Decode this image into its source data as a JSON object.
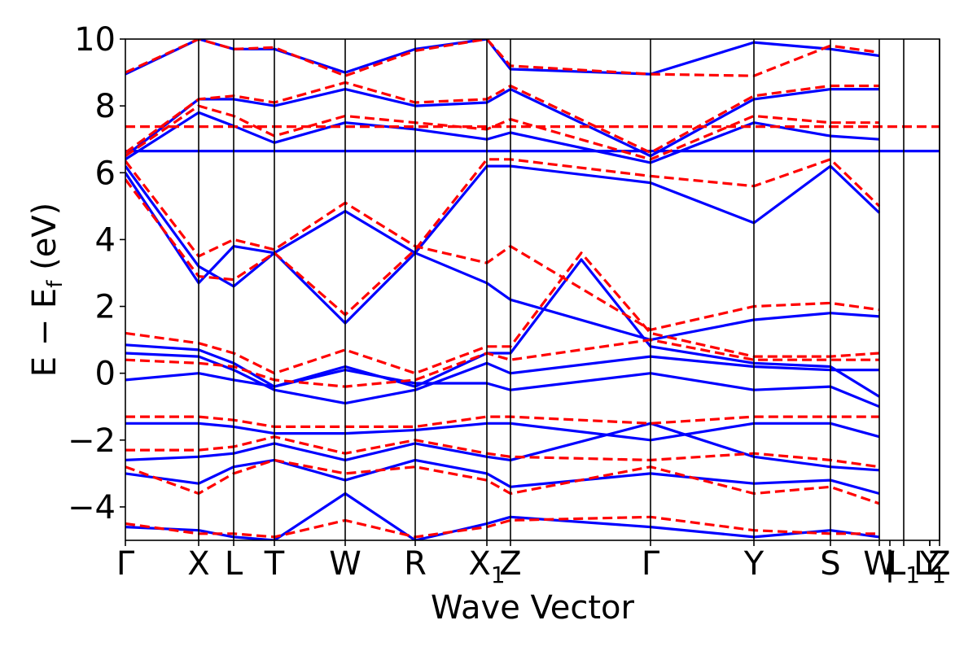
{
  "chart_data": {
    "type": "line",
    "title": "",
    "xlabel": "Wave Vector",
    "ylabel": "E − E",
    "ylabel_subscript": "f",
    "ylabel_unit": " (eV)",
    "ylim": [
      -5,
      10
    ],
    "yticks": [
      {
        "value": 10,
        "label": "10"
      },
      {
        "value": 8,
        "label": "8"
      },
      {
        "value": 6,
        "label": "6"
      },
      {
        "value": 4,
        "label": "4"
      },
      {
        "value": 2,
        "label": "2"
      },
      {
        "value": 0,
        "label": "0"
      },
      {
        "value": -2,
        "label": "−2"
      },
      {
        "value": -4,
        "label": "−4"
      }
    ],
    "kpath": [
      {
        "label": "Γ",
        "sub": "",
        "x": 0.0
      },
      {
        "label": "X",
        "sub": "",
        "x": 0.9
      },
      {
        "label": "L",
        "sub": "",
        "x": 1.33
      },
      {
        "label": "T",
        "sub": "",
        "x": 1.83
      },
      {
        "label": "W",
        "sub": "",
        "x": 2.7
      },
      {
        "label": "R",
        "sub": "",
        "x": 3.56
      },
      {
        "label": "X",
        "sub": "1",
        "x": 4.44
      },
      {
        "label": "Z",
        "sub": "",
        "x": 4.73
      },
      {
        "label": "Γ",
        "sub": "",
        "x": 6.45
      },
      {
        "label": "Y",
        "sub": "",
        "x": 7.72
      },
      {
        "label": "S",
        "sub": "",
        "x": 8.66
      },
      {
        "label": "W",
        "sub": "",
        "x": 9.26
      },
      {
        "label": "|",
        "sub": "",
        "x": 9.39
      },
      {
        "label": "L",
        "sub": "1",
        "x": 9.56
      },
      {
        "label": "Y",
        "sub": "",
        "x": 9.88
      },
      {
        "label": "L",
        "sub": "1",
        "x": 9.88
      },
      {
        "label": "Z",
        "sub": "",
        "x": 10.0
      }
    ],
    "segment_lines": [
      0.9,
      1.33,
      1.83,
      2.7,
      3.56,
      4.44,
      4.73,
      6.45,
      7.72,
      8.66,
      9.26,
      9.56,
      10.0
    ],
    "xlim": [
      0,
      10
    ],
    "series": [
      {
        "color": "#0000ff",
        "style": "solid",
        "bands": [
          {
            "x": [
              0,
              10
            ],
            "y": [
              6.65,
              6.65
            ]
          },
          {
            "x": [
              0,
              0.9,
              1.33,
              1.83,
              2.7,
              3.56,
              4.44,
              4.73,
              6.45,
              7.72,
              8.66,
              9.26
            ],
            "y": [
              6.2,
              3.2,
              2.6,
              3.6,
              4.85,
              3.6,
              2.7,
              2.2,
              1.0,
              1.6,
              1.8,
              1.7
            ]
          },
          {
            "x": [
              0,
              0.9,
              1.33,
              1.83,
              2.7,
              3.56,
              4.44,
              4.73,
              6.45,
              7.72,
              8.66,
              9.26
            ],
            "y": [
              6.0,
              2.7,
              3.8,
              3.6,
              1.5,
              3.6,
              6.2,
              6.2,
              5.7,
              4.5,
              6.2,
              4.8
            ]
          },
          {
            "x": [
              0,
              0.9,
              1.33,
              1.83,
              2.7,
              3.56,
              4.44,
              4.73,
              5.6,
              6.45,
              7.72,
              8.66,
              9.26
            ],
            "y": [
              0.85,
              0.7,
              0.3,
              -0.4,
              0.2,
              -0.4,
              0.6,
              0.6,
              3.4,
              0.8,
              0.3,
              0.2,
              -0.7
            ]
          },
          {
            "x": [
              0,
              0.9,
              1.33,
              1.83,
              2.7,
              3.56,
              4.44,
              4.73,
              6.45,
              7.72,
              8.66,
              9.26
            ],
            "y": [
              0.6,
              0.5,
              0.1,
              -0.5,
              -0.9,
              -0.5,
              0.3,
              0.0,
              0.5,
              0.2,
              0.1,
              0.1
            ]
          },
          {
            "x": [
              0,
              0.9,
              1.33,
              1.83,
              2.7,
              3.56,
              4.44,
              4.73,
              6.45,
              7.72,
              8.66,
              9.26
            ],
            "y": [
              -0.2,
              0.0,
              -0.2,
              -0.4,
              0.1,
              -0.3,
              -0.3,
              -0.5,
              0.0,
              -0.5,
              -0.4,
              -1.0
            ]
          },
          {
            "x": [
              0,
              0.9,
              1.33,
              1.83,
              2.7,
              3.56,
              4.44,
              4.73,
              6.45,
              7.72,
              8.66,
              9.26
            ],
            "y": [
              -1.5,
              -1.5,
              -1.6,
              -1.8,
              -1.8,
              -1.7,
              -1.5,
              -1.5,
              -2.0,
              -1.5,
              -1.5,
              -1.9
            ]
          },
          {
            "x": [
              0,
              0.9,
              1.33,
              1.83,
              2.7,
              3.56,
              4.44,
              4.73,
              6.45,
              7.72,
              8.66,
              9.26
            ],
            "y": [
              -2.6,
              -2.5,
              -2.4,
              -2.1,
              -2.6,
              -2.1,
              -2.5,
              -2.6,
              -1.5,
              -2.5,
              -2.8,
              -2.9
            ]
          },
          {
            "x": [
              0,
              0.9,
              1.33,
              1.83,
              2.7,
              3.56,
              4.44,
              4.73,
              6.45,
              7.72,
              8.66,
              9.26
            ],
            "y": [
              -3.0,
              -3.3,
              -2.8,
              -2.6,
              -3.2,
              -2.6,
              -3.0,
              -3.4,
              -3.0,
              -3.3,
              -3.2,
              -3.6
            ]
          },
          {
            "x": [
              0,
              0.9,
              1.33,
              1.83,
              2.7,
              3.56,
              4.44,
              4.73,
              6.45,
              7.72,
              8.66,
              9.26
            ],
            "y": [
              -4.6,
              -4.7,
              -4.9,
              -5.0,
              -3.6,
              -5.0,
              -4.5,
              -4.3,
              -4.6,
              -4.9,
              -4.7,
              -4.9
            ]
          },
          {
            "x": [
              0,
              0.9,
              1.33,
              1.83,
              2.7,
              3.56,
              4.44,
              4.73,
              6.45,
              7.72,
              8.66,
              9.26
            ],
            "y": [
              8.95,
              10.0,
              9.7,
              9.7,
              9.0,
              9.7,
              10.0,
              9.1,
              8.95,
              9.9,
              9.7,
              9.5
            ]
          },
          {
            "x": [
              0,
              0.9,
              1.33,
              1.83,
              2.7,
              3.56,
              4.44,
              4.73,
              6.45,
              7.72,
              8.66,
              9.26
            ],
            "y": [
              6.5,
              8.2,
              8.2,
              8.0,
              8.5,
              8.0,
              8.1,
              8.5,
              6.5,
              8.2,
              8.5,
              8.5
            ]
          },
          {
            "x": [
              0,
              0.9,
              1.33,
              1.83,
              2.7,
              3.56,
              4.44,
              4.73,
              6.45,
              7.72,
              8.66,
              9.26
            ],
            "y": [
              6.4,
              7.8,
              7.4,
              6.9,
              7.5,
              7.3,
              7.0,
              7.2,
              6.3,
              7.5,
              7.1,
              7.0
            ]
          }
        ]
      },
      {
        "color": "#ff0000",
        "style": "dashed",
        "bands": [
          {
            "x": [
              0,
              10
            ],
            "y": [
              7.38,
              7.38
            ]
          },
          {
            "x": [
              0,
              0.9,
              1.33,
              1.83,
              2.7,
              3.56,
              4.44,
              4.73,
              6.45,
              7.72,
              8.66,
              9.26
            ],
            "y": [
              6.35,
              3.5,
              4.0,
              3.7,
              5.1,
              3.8,
              3.3,
              3.8,
              1.3,
              2.0,
              2.1,
              1.9
            ]
          },
          {
            "x": [
              0,
              0.9,
              1.33,
              1.83,
              2.7,
              3.56,
              4.44,
              4.73,
              6.45,
              7.72,
              8.66,
              9.26
            ],
            "y": [
              5.8,
              2.9,
              2.8,
              3.6,
              1.75,
              3.7,
              6.4,
              6.4,
              5.9,
              5.6,
              6.4,
              5.0
            ]
          },
          {
            "x": [
              0,
              0.9,
              1.33,
              1.83,
              2.7,
              3.56,
              4.44,
              4.73,
              5.6,
              6.45,
              7.72,
              8.66,
              9.26
            ],
            "y": [
              1.2,
              0.9,
              0.6,
              0.0,
              0.7,
              0.0,
              0.8,
              0.8,
              3.6,
              1.2,
              0.5,
              0.5,
              0.6
            ]
          },
          {
            "x": [
              0,
              0.9,
              1.33,
              1.83,
              2.7,
              3.56,
              4.44,
              4.73,
              6.45,
              7.72,
              8.66,
              9.26
            ],
            "y": [
              0.4,
              0.3,
              0.2,
              -0.2,
              -0.4,
              -0.2,
              0.6,
              0.4,
              1.0,
              0.4,
              0.4,
              0.4
            ]
          },
          {
            "x": [
              0,
              0.9,
              1.33,
              1.83,
              2.7,
              3.56,
              4.44,
              4.73,
              6.45,
              7.72,
              8.66,
              9.26
            ],
            "y": [
              -1.3,
              -1.3,
              -1.4,
              -1.6,
              -1.6,
              -1.6,
              -1.3,
              -1.3,
              -1.5,
              -1.3,
              -1.3,
              -1.3
            ]
          },
          {
            "x": [
              0,
              0.9,
              1.33,
              1.83,
              2.7,
              3.56,
              4.44,
              4.73,
              6.45,
              7.72,
              8.66,
              9.26
            ],
            "y": [
              -2.3,
              -2.3,
              -2.2,
              -1.9,
              -2.4,
              -2.0,
              -2.4,
              -2.5,
              -2.6,
              -2.4,
              -2.6,
              -2.8
            ]
          },
          {
            "x": [
              0,
              0.9,
              1.33,
              1.83,
              2.7,
              3.56,
              4.44,
              4.73,
              6.45,
              7.72,
              8.66,
              9.26
            ],
            "y": [
              -2.8,
              -3.6,
              -3.0,
              -2.6,
              -3.0,
              -2.8,
              -3.2,
              -3.6,
              -2.8,
              -3.6,
              -3.4,
              -3.9
            ]
          },
          {
            "x": [
              0,
              0.9,
              1.33,
              1.83,
              2.7,
              3.56,
              4.44,
              4.73,
              6.45,
              7.72,
              8.66,
              9.26
            ],
            "y": [
              -4.5,
              -4.8,
              -4.8,
              -4.9,
              -4.4,
              -4.9,
              -4.6,
              -4.4,
              -4.3,
              -4.7,
              -4.8,
              -4.8
            ]
          },
          {
            "x": [
              0,
              0.9,
              1.33,
              1.83,
              2.7,
              3.56,
              4.44,
              4.73,
              6.45,
              7.72,
              8.66,
              9.26
            ],
            "y": [
              9.0,
              10.0,
              9.7,
              9.75,
              8.9,
              9.65,
              10.0,
              9.2,
              8.95,
              8.9,
              9.8,
              9.6
            ]
          },
          {
            "x": [
              0,
              0.9,
              1.33,
              1.83,
              2.7,
              3.56,
              4.44,
              4.73,
              6.45,
              7.72,
              8.66,
              9.26
            ],
            "y": [
              6.6,
              8.2,
              8.3,
              8.1,
              8.7,
              8.1,
              8.2,
              8.6,
              6.6,
              8.3,
              8.6,
              8.6
            ]
          },
          {
            "x": [
              0,
              0.9,
              1.33,
              1.83,
              2.7,
              3.56,
              4.44,
              4.73,
              6.45,
              7.72,
              8.66,
              9.26
            ],
            "y": [
              6.5,
              8.0,
              7.7,
              7.1,
              7.7,
              7.5,
              7.3,
              7.6,
              6.4,
              7.7,
              7.5,
              7.5
            ]
          }
        ]
      }
    ],
    "grid": false,
    "legend": "none"
  }
}
